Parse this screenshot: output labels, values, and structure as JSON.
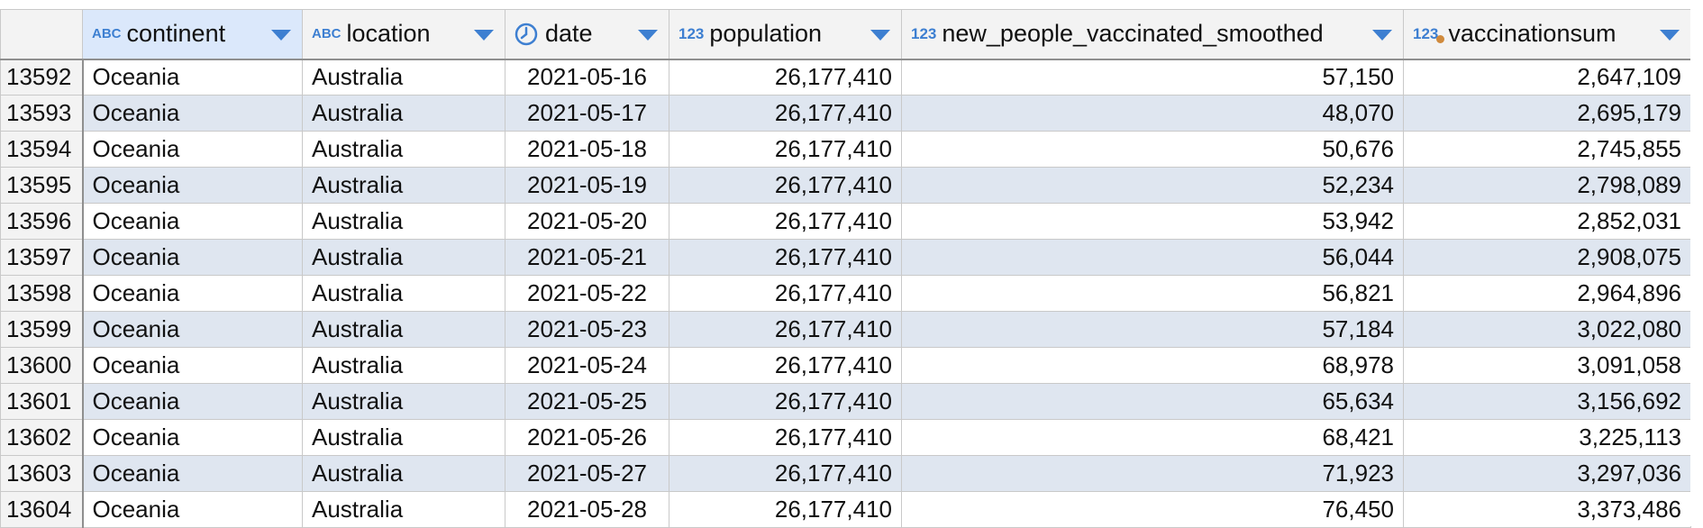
{
  "columns": [
    {
      "key": "continent",
      "label": "continent",
      "type_icon": "ABC",
      "icon_name": "text-type-icon"
    },
    {
      "key": "location",
      "label": "location",
      "type_icon": "ABC",
      "icon_name": "text-type-icon"
    },
    {
      "key": "date",
      "label": "date",
      "type_icon": "clock",
      "icon_name": "date-type-icon"
    },
    {
      "key": "population",
      "label": "population",
      "type_icon": "123",
      "icon_name": "number-type-icon"
    },
    {
      "key": "new_people_vaccinated_smoothed",
      "label": "new_people_vaccinated_smoothed",
      "type_icon": "123",
      "icon_name": "number-type-icon"
    },
    {
      "key": "vaccinationsum",
      "label": "vaccinationsum",
      "type_icon": "123",
      "icon_name": "calculated-number-type-icon"
    }
  ],
  "colors": {
    "accent": "#3d7fd1",
    "selected_header": "#dbe8fb",
    "alt_row": "#dfe6f0",
    "calc_dot": "#d08a3c"
  },
  "rows": [
    {
      "n": "13592",
      "continent": "Oceania",
      "location": "Australia",
      "date": "2021-05-16",
      "population": "26,177,410",
      "new_people_vaccinated_smoothed": "57,150",
      "vaccinationsum": "2,647,109"
    },
    {
      "n": "13593",
      "continent": "Oceania",
      "location": "Australia",
      "date": "2021-05-17",
      "population": "26,177,410",
      "new_people_vaccinated_smoothed": "48,070",
      "vaccinationsum": "2,695,179"
    },
    {
      "n": "13594",
      "continent": "Oceania",
      "location": "Australia",
      "date": "2021-05-18",
      "population": "26,177,410",
      "new_people_vaccinated_smoothed": "50,676",
      "vaccinationsum": "2,745,855"
    },
    {
      "n": "13595",
      "continent": "Oceania",
      "location": "Australia",
      "date": "2021-05-19",
      "population": "26,177,410",
      "new_people_vaccinated_smoothed": "52,234",
      "vaccinationsum": "2,798,089"
    },
    {
      "n": "13596",
      "continent": "Oceania",
      "location": "Australia",
      "date": "2021-05-20",
      "population": "26,177,410",
      "new_people_vaccinated_smoothed": "53,942",
      "vaccinationsum": "2,852,031"
    },
    {
      "n": "13597",
      "continent": "Oceania",
      "location": "Australia",
      "date": "2021-05-21",
      "population": "26,177,410",
      "new_people_vaccinated_smoothed": "56,044",
      "vaccinationsum": "2,908,075"
    },
    {
      "n": "13598",
      "continent": "Oceania",
      "location": "Australia",
      "date": "2021-05-22",
      "population": "26,177,410",
      "new_people_vaccinated_smoothed": "56,821",
      "vaccinationsum": "2,964,896"
    },
    {
      "n": "13599",
      "continent": "Oceania",
      "location": "Australia",
      "date": "2021-05-23",
      "population": "26,177,410",
      "new_people_vaccinated_smoothed": "57,184",
      "vaccinationsum": "3,022,080"
    },
    {
      "n": "13600",
      "continent": "Oceania",
      "location": "Australia",
      "date": "2021-05-24",
      "population": "26,177,410",
      "new_people_vaccinated_smoothed": "68,978",
      "vaccinationsum": "3,091,058"
    },
    {
      "n": "13601",
      "continent": "Oceania",
      "location": "Australia",
      "date": "2021-05-25",
      "population": "26,177,410",
      "new_people_vaccinated_smoothed": "65,634",
      "vaccinationsum": "3,156,692"
    },
    {
      "n": "13602",
      "continent": "Oceania",
      "location": "Australia",
      "date": "2021-05-26",
      "population": "26,177,410",
      "new_people_vaccinated_smoothed": "68,421",
      "vaccinationsum": "3,225,113"
    },
    {
      "n": "13603",
      "continent": "Oceania",
      "location": "Australia",
      "date": "2021-05-27",
      "population": "26,177,410",
      "new_people_vaccinated_smoothed": "71,923",
      "vaccinationsum": "3,297,036"
    },
    {
      "n": "13604",
      "continent": "Oceania",
      "location": "Australia",
      "date": "2021-05-28",
      "population": "26,177,410",
      "new_people_vaccinated_smoothed": "76,450",
      "vaccinationsum": "3,373,486"
    }
  ]
}
